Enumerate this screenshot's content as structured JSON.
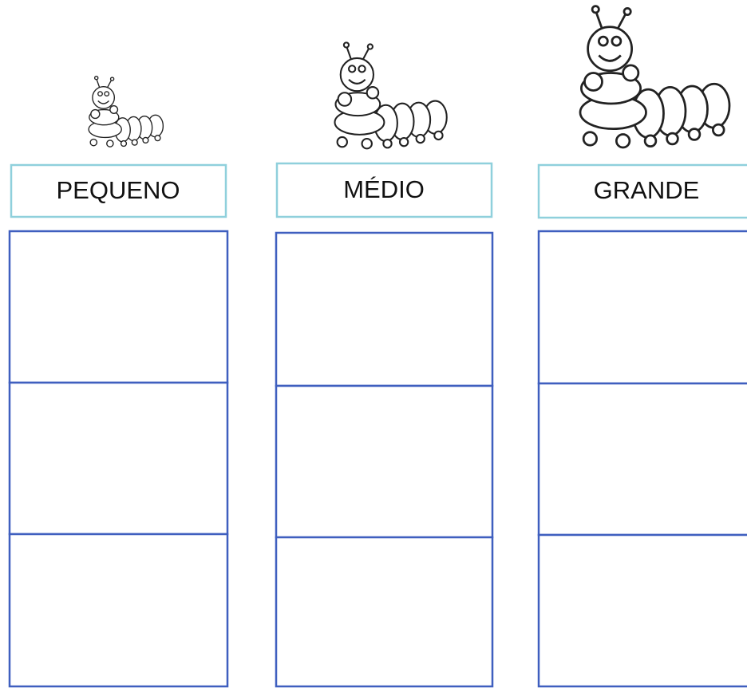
{
  "columns": [
    {
      "label": "PEQUENO"
    },
    {
      "label": "MÉDIO"
    },
    {
      "label": "GRANDE"
    }
  ]
}
